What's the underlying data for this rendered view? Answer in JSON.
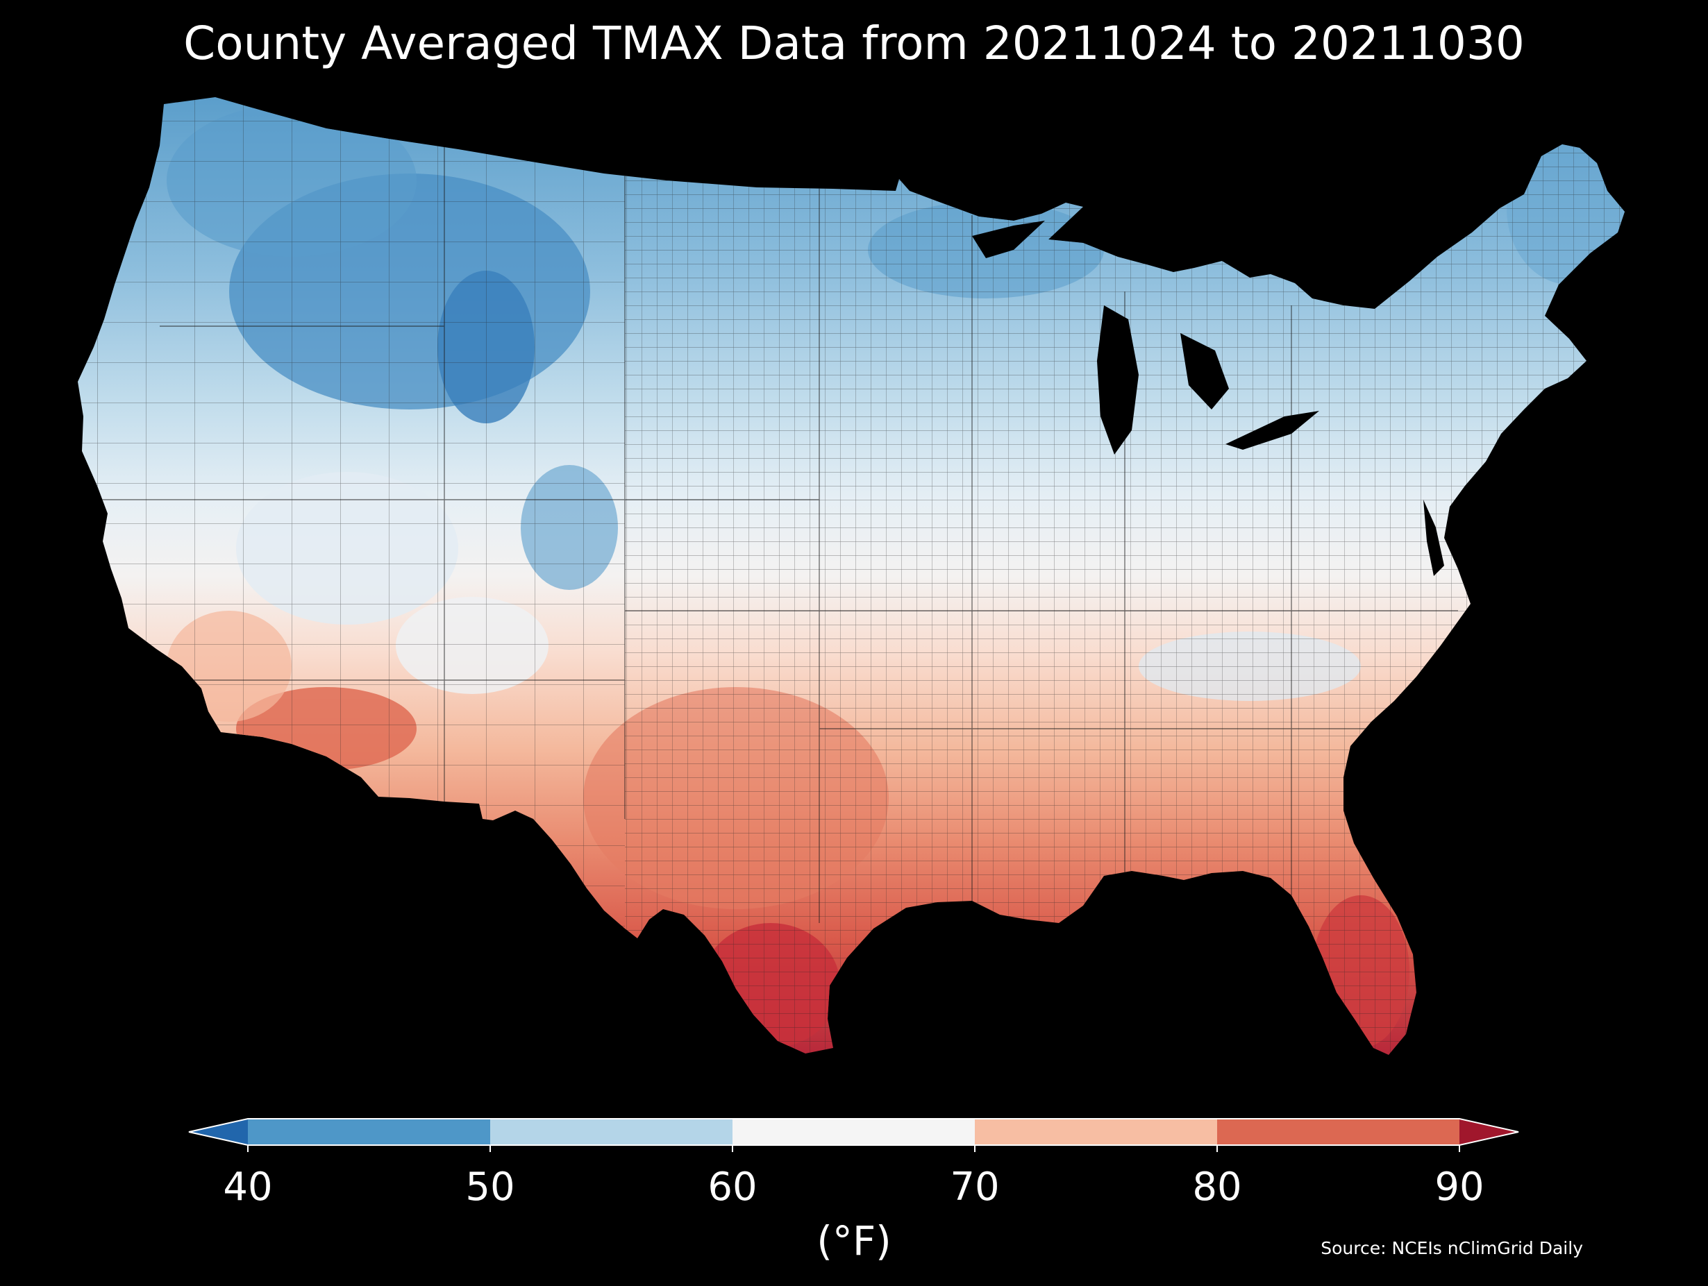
{
  "title": "County Averaged TMAX Data from 20211024 to 20211030",
  "source": "Source: NCEIs nClimGrid Daily",
  "colorbar": {
    "units": "(°F)",
    "ticks": [
      "40",
      "50",
      "60",
      "70",
      "80",
      "90"
    ],
    "bins": [
      {
        "from": 40,
        "to": 50,
        "color": "#4e97c8"
      },
      {
        "from": 50,
        "to": 60,
        "color": "#b4d5e8"
      },
      {
        "from": 60,
        "to": 70,
        "color": "#f5f5f5"
      },
      {
        "from": 70,
        "to": 80,
        "color": "#f7bea3"
      },
      {
        "from": 80,
        "to": 90,
        "color": "#dc6852"
      }
    ],
    "under_color": "#2166ac",
    "over_color": "#a0172c"
  },
  "map": {
    "region": "Contiguous United States",
    "variable": "TMAX",
    "aggregation": "County averaged",
    "background_color": "#000000",
    "border_color": "#1a1a1a"
  }
}
